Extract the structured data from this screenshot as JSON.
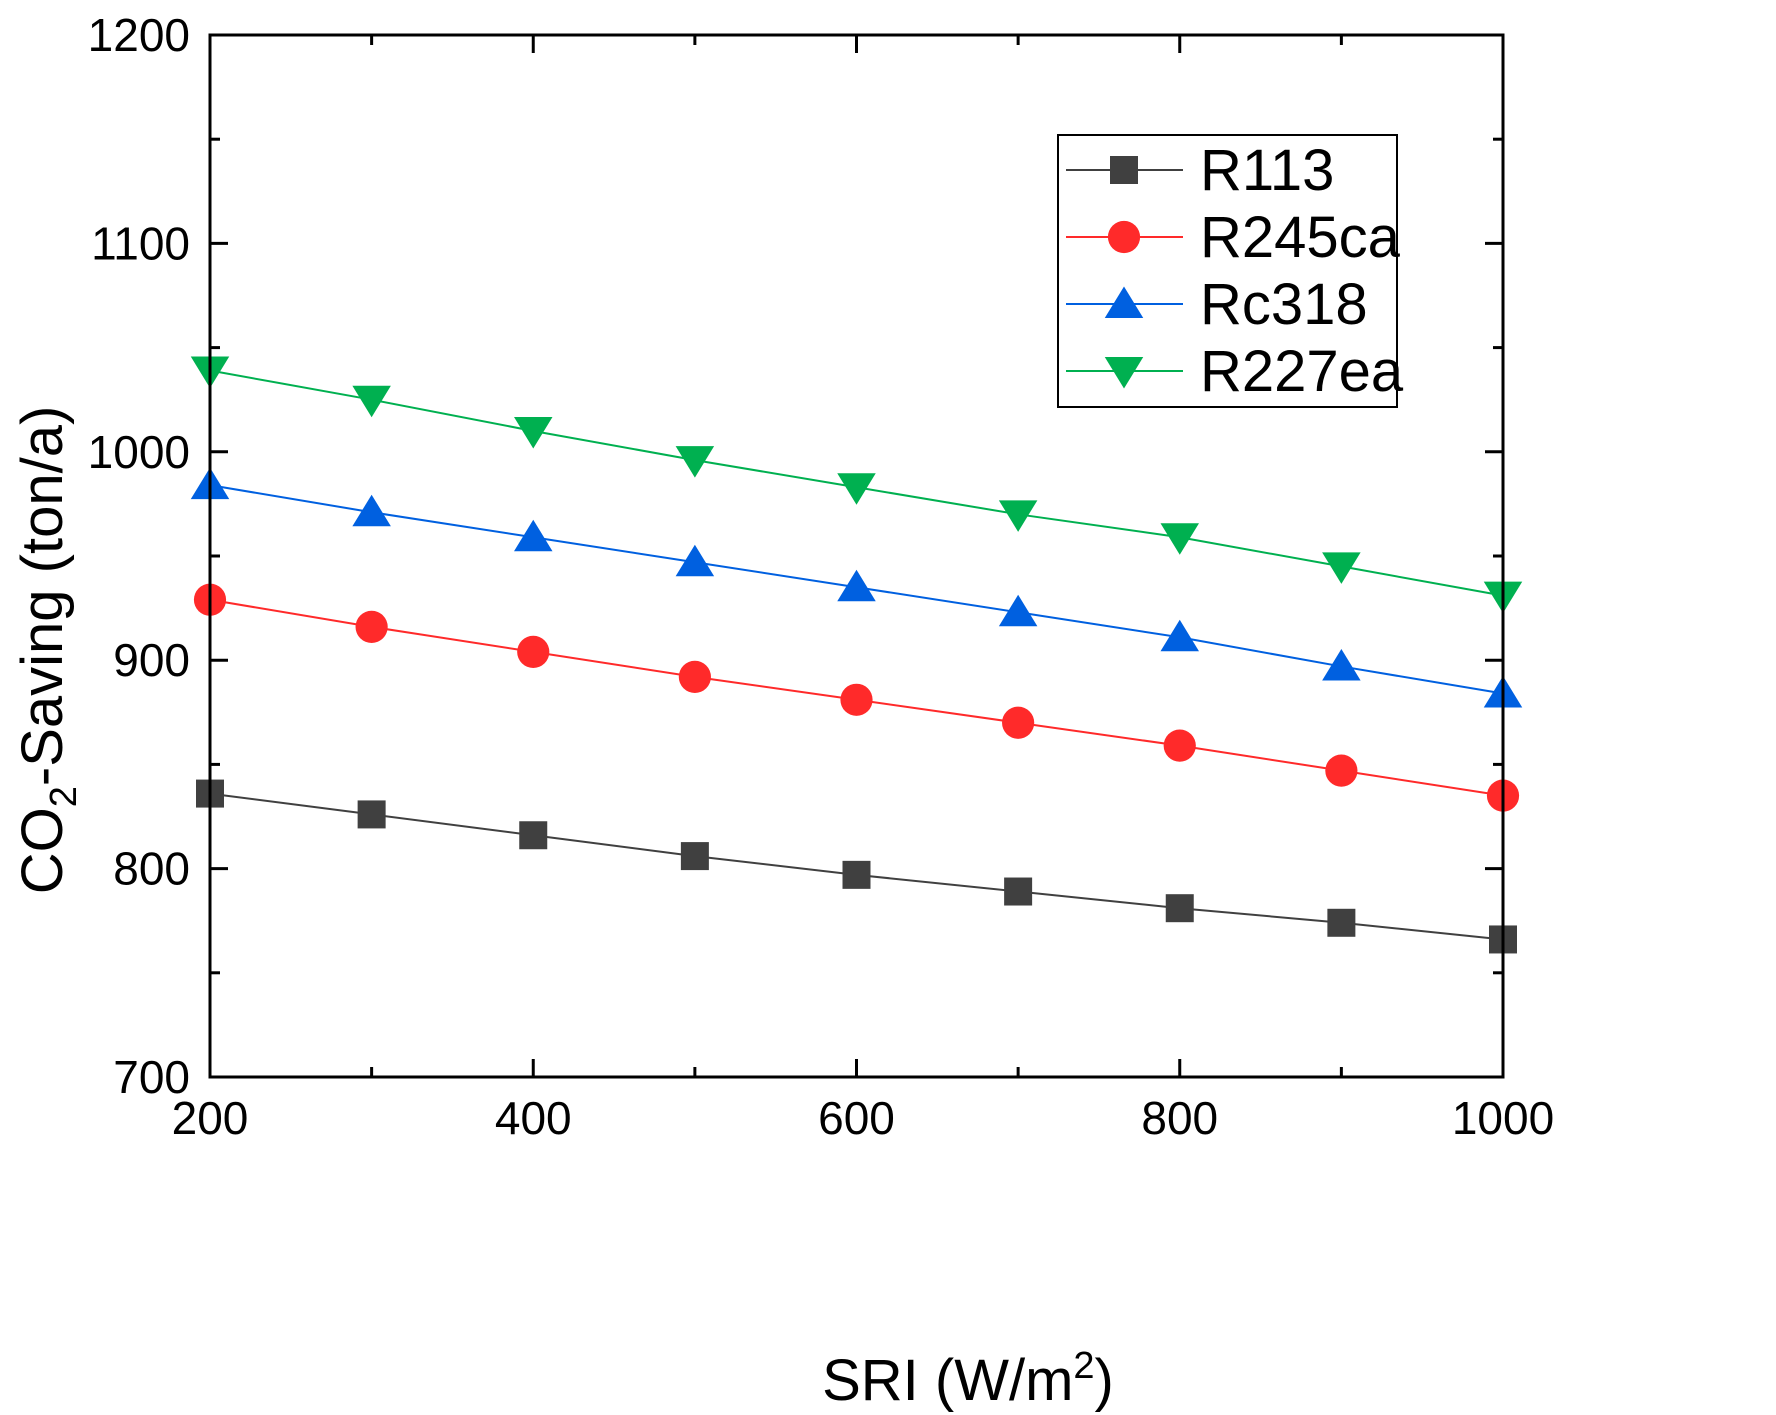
{
  "chart_data": {
    "type": "line",
    "x": [
      200,
      300,
      400,
      500,
      600,
      700,
      800,
      900,
      1000
    ],
    "series": [
      {
        "name": "R113",
        "color": "#404040",
        "marker": "square",
        "values": [
          836,
          826,
          816,
          806,
          797,
          789,
          781,
          774,
          766
        ]
      },
      {
        "name": "R245ca",
        "color": "#ff2a2a",
        "marker": "circle",
        "values": [
          929,
          916,
          904,
          892,
          881,
          870,
          859,
          847,
          835
        ]
      },
      {
        "name": "Rc318",
        "color": "#0060e0",
        "marker": "triangle-up",
        "values": [
          984,
          971,
          959,
          947,
          935,
          923,
          911,
          897,
          884
        ]
      },
      {
        "name": "R227ea",
        "color": "#00b050",
        "marker": "triangle-down",
        "values": [
          1039,
          1025,
          1010,
          996,
          983,
          970,
          959,
          945,
          931
        ]
      }
    ],
    "xlim": [
      200,
      1000
    ],
    "ylim": [
      700,
      1200
    ],
    "xticks": [
      "200",
      "400",
      "600",
      "800",
      "1000"
    ],
    "yticks": [
      "700",
      "800",
      "900",
      "1000",
      "1100",
      "1200"
    ],
    "xlabel": {
      "main": "SRI (W/m",
      "sup": "2",
      "end": ")"
    },
    "ylabel": {
      "pre": "CO",
      "sub": "2",
      "post": "-Saving (ton/a)"
    },
    "legend_position": "top-right",
    "grid": false
  }
}
